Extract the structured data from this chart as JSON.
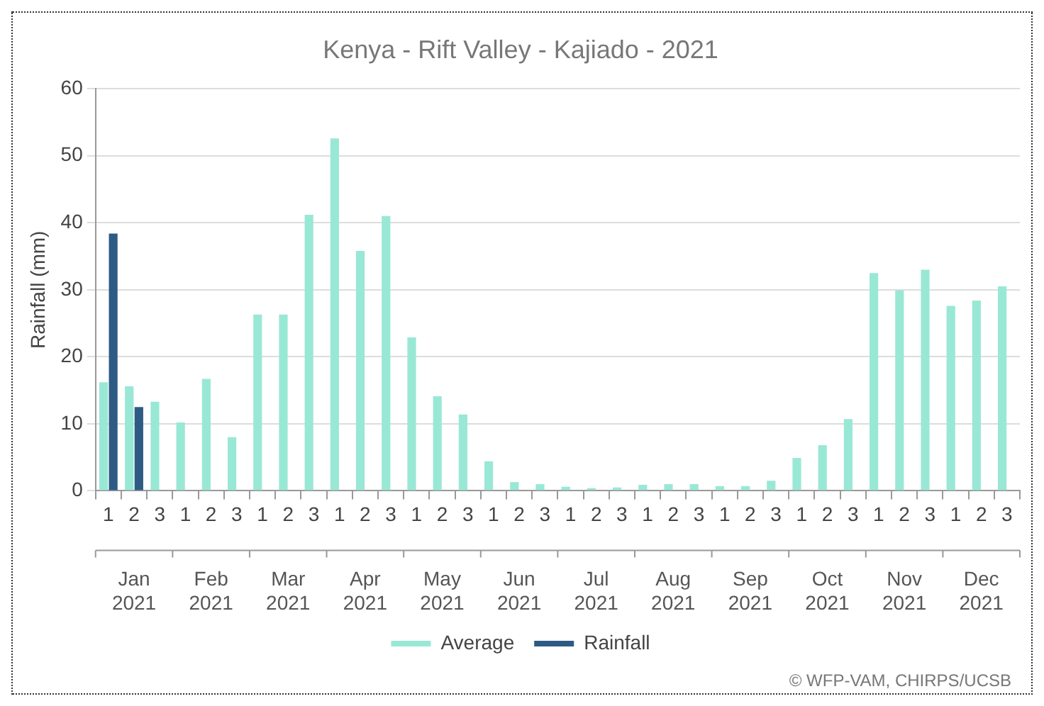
{
  "chart_data": {
    "type": "bar",
    "title": "Kenya - Rift Valley - Kajiado - 2021",
    "ylabel": "Rainfall (mm)",
    "categories": [
      "1",
      "2",
      "3",
      "1",
      "2",
      "3",
      "1",
      "2",
      "3",
      "1",
      "2",
      "3",
      "1",
      "2",
      "3",
      "1",
      "2",
      "3",
      "1",
      "2",
      "3",
      "1",
      "2",
      "3",
      "1",
      "2",
      "3",
      "1",
      "2",
      "3",
      "1",
      "2",
      "3",
      "1",
      "2",
      "3"
    ],
    "series": [
      {
        "name": "Average",
        "color": "#99e8d6",
        "values": [
          16.2,
          15.6,
          13.3,
          10.2,
          16.7,
          8.0,
          26.3,
          26.3,
          41.2,
          52.6,
          35.8,
          41.0,
          22.9,
          14.1,
          11.4,
          4.4,
          1.3,
          1.0,
          0.6,
          0.4,
          0.5,
          0.9,
          1.0,
          1.0,
          0.7,
          0.7,
          1.5,
          4.9,
          6.8,
          10.7,
          32.5,
          29.9,
          33.0,
          27.6,
          28.4,
          30.5
        ]
      },
      {
        "name": "Rainfall",
        "color": "#2e5b84",
        "values": [
          38.4,
          12.5,
          null,
          null,
          null,
          null,
          null,
          null,
          null,
          null,
          null,
          null,
          null,
          null,
          null,
          null,
          null,
          null,
          null,
          null,
          null,
          null,
          null,
          null,
          null,
          null,
          null,
          null,
          null,
          null,
          null,
          null,
          null,
          null,
          null,
          null
        ]
      }
    ],
    "ylim": [
      0,
      60
    ],
    "yticks": [
      0,
      10,
      20,
      30,
      40,
      50,
      60
    ],
    "grid": "y",
    "legend": "bottom",
    "annotations": [
      "Jan 2021",
      "Feb 2021",
      "Mar 2021",
      "Apr 2021",
      "May 2021",
      "Jun 2021",
      "Jul 2021",
      "Aug 2021",
      "Sep 2021",
      "Oct 2021",
      "Nov 2021",
      "Dec 2021",
      "© WFP-VAM, CHIRPS/UCSB"
    ]
  }
}
